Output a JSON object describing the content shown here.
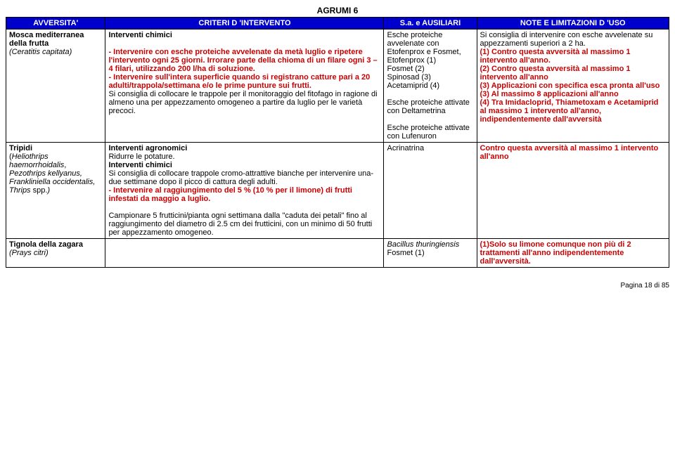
{
  "page_title": "AGRUMI 6",
  "headers": {
    "avversita": "AVVERSITA'",
    "criteri": "CRITERI  D 'INTERVENTO",
    "sa": "S.a. e AUSILIARI",
    "note": "NOTE  E  LIMITAZIONI  D 'USO"
  },
  "row1": {
    "avversita_l1": "Mosca mediterranea della  frutta",
    "avversita_l2": "(Ceratitis capitata)",
    "criteri_l1": "Interventi chimici",
    "criteri_l2": "- Intervenire con esche proteiche avvelenate da metà luglio e ripetere l'intervento ogni 25 giorni. Irrorare parte della chioma di un filare ogni 3 – 4 filari, utilizzando 200 l/ha di soluzione.",
    "criteri_l3": "- Intervenire sull'intera superficie quando si registrano catture pari a 20 adulti/trappola/settimana e/o le prime punture sui frutti.",
    "criteri_l4": "Si consiglia di collocare le trappole per il monitoraggio del fitofago in ragione di almeno una per appezzamento omogeneo a partire da luglio per le varietà precoci.",
    "sa_l1": "Esche proteiche avvelenate con Etofenprox e Fosmet,",
    "sa_l2": "Etofenprox (1)",
    "sa_l3": "Fosmet (2)",
    "sa_l4": "Spinosad (3)",
    "sa_l5": "Acetamiprid (4)",
    "sa_l6": "Esche proteiche attivate con Deltametrina",
    "sa_l7": "Esche proteiche attivate con Lufenuron",
    "note_l1": "Si consiglia di intervenire con esche avvelenate su appezzamenti superiori a 2 ha.",
    "note_l2": "(1) Contro questa avversità al massimo 1 intervento all'anno.",
    "note_l3": "(2) Contro questa avversità al massimo 1 intervento all'anno",
    "note_l4": "(3) Applicazioni con specifica esca pronta all'uso",
    "note_l5": "(3) Al massimo 8 applicazioni all'anno",
    "note_l6": "(4) Tra Imidacloprid, Thiametoxam e Acetamiprid al massimo 1 intervento all'anno, indipendentemente dall'avversità"
  },
  "row2": {
    "avversita_l1": "Tripidi",
    "avversita_l2a": "(",
    "avversita_l2b": "Heliothrips haemorrhoidalis",
    "avversita_l2c": ", ",
    "avversita_l2d": "Pezothrips kellyanus, Frankliniella occidentalis, Thrips",
    "avversita_l2e": " spp.",
    "avversita_l2f": ")",
    "criteri_l1": "Interventi agronomici",
    "criteri_l2": "Ridurre le potature.",
    "criteri_l3": "Interventi chimici",
    "criteri_l4": "Si consiglia di collocare trappole cromo-attrattive bianche per intervenire  una-due settimane dopo il picco di cattura degli adulti.",
    "criteri_l5": "- Intervenire al raggiungimento del 5 % (10 % per il limone) di frutti infestati da maggio a luglio.",
    "criteri_l6": "Campionare 5 frutticini/pianta ogni settimana dalla \"caduta dei petali\" fino al raggiungimento del diametro di 2.5 cm dei frutticini, con un minimo di 50 frutti per appezzamento omogeneo.",
    "sa_l1": "Acrinatrina",
    "note_l1": "Contro questa avversità al massimo 1 intervento all'anno"
  },
  "row3": {
    "avversita_l1": "Tignola della zagara",
    "avversita_l2": "(Prays citri)",
    "sa_l1": "Bacillus thuringiensis",
    "sa_l2": "Fosmet (1)",
    "note_l1": "(1)Solo su limone comunque non più di 2 trattamenti all'anno indipendentemente dall'avversità."
  },
  "footer": "Pagina 18 di 85",
  "colors": {
    "header_bg": "#0000cc",
    "header_fg": "#ffffff",
    "red": "#cc0000",
    "black": "#000000",
    "border": "#000000"
  }
}
